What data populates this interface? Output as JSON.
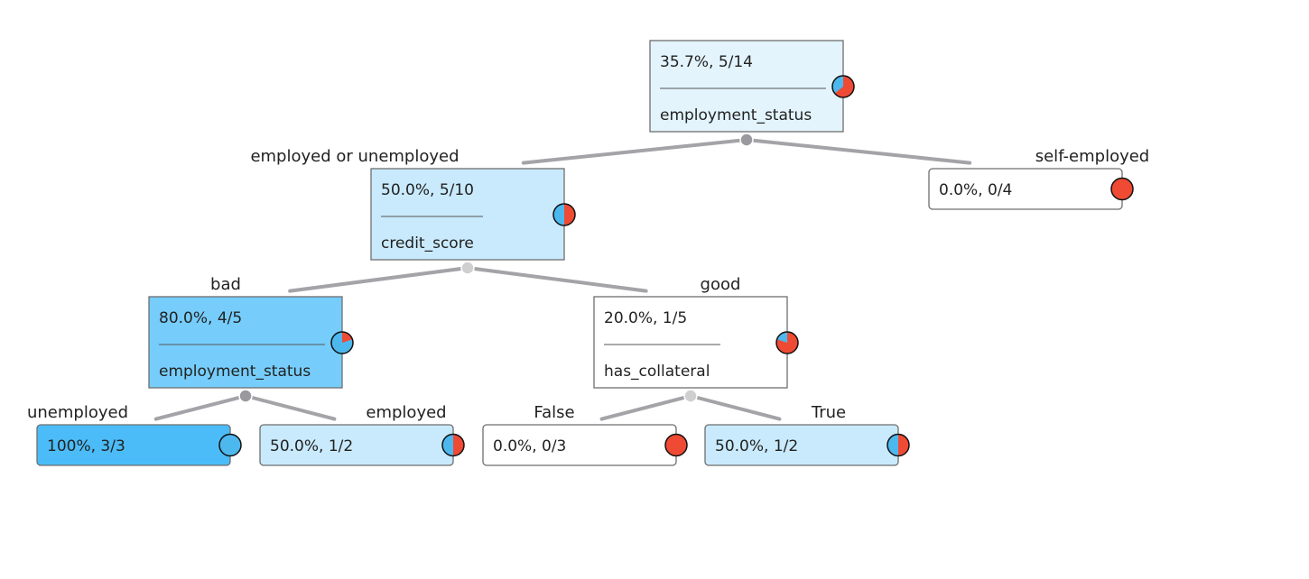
{
  "colors": {
    "positive": "#4db8ee",
    "negative": "#ef4a34",
    "edge": "#a3a3a8",
    "node_border": "#6e6e6e",
    "joint_dark": "#9a9a9e",
    "joint_light": "#cfcfcf"
  },
  "nodes": [
    {
      "id": "root",
      "stats": "35.7%, 5/14",
      "feature": "employment_status",
      "fraction": 0.357,
      "fill": "#e3f4fd"
    },
    {
      "id": "emp_or_unemp",
      "stats": "50.0%, 5/10",
      "feature": "credit_score",
      "fraction": 0.5,
      "fill": "#c9eafc"
    },
    {
      "id": "self_employed",
      "stats": "0.0%, 0/4",
      "feature": "",
      "fraction": 0.0,
      "fill": "#ffffff"
    },
    {
      "id": "bad",
      "stats": "80.0%, 4/5",
      "feature": "employment_status",
      "fraction": 0.8,
      "fill": "#76cdfb"
    },
    {
      "id": "good",
      "stats": "20.0%, 1/5",
      "feature": "has_collateral",
      "fraction": 0.2,
      "fill": "#ffffff"
    },
    {
      "id": "bad_unemployed",
      "stats": "100%, 3/3",
      "feature": "",
      "fraction": 1.0,
      "fill": "#4bbcf8"
    },
    {
      "id": "bad_employed",
      "stats": "50.0%, 1/2",
      "feature": "",
      "fraction": 0.5,
      "fill": "#c9eafc"
    },
    {
      "id": "good_false",
      "stats": "0.0%, 0/3",
      "feature": "",
      "fraction": 0.0,
      "fill": "#ffffff"
    },
    {
      "id": "good_true",
      "stats": "50.0%, 1/2",
      "feature": "",
      "fraction": 0.5,
      "fill": "#c9eafc"
    }
  ],
  "edges": [
    {
      "from": "root",
      "to": "emp_or_unemp",
      "label": "employed or unemployed"
    },
    {
      "from": "root",
      "to": "self_employed",
      "label": "self-employed"
    },
    {
      "from": "emp_or_unemp",
      "to": "bad",
      "label": "bad"
    },
    {
      "from": "emp_or_unemp",
      "to": "good",
      "label": "good"
    },
    {
      "from": "bad",
      "to": "bad_unemployed",
      "label": "unemployed"
    },
    {
      "from": "bad",
      "to": "bad_employed",
      "label": "employed"
    },
    {
      "from": "good",
      "to": "good_false",
      "label": "False"
    },
    {
      "from": "good",
      "to": "good_true",
      "label": "True"
    }
  ]
}
